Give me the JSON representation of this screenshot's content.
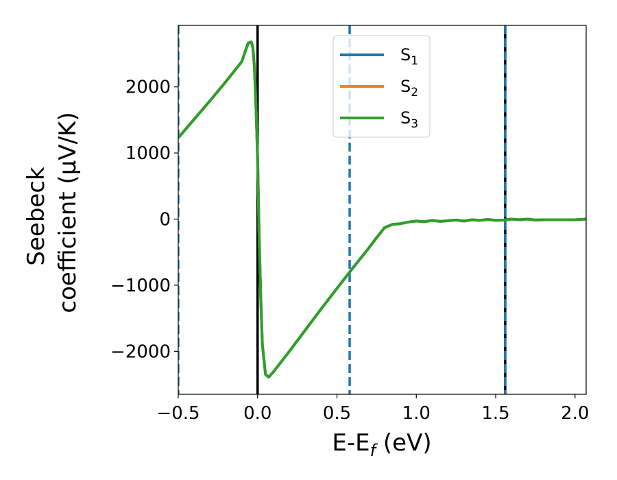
{
  "chart_data": {
    "type": "line",
    "title": "",
    "xlabel": {
      "main": "E-E",
      "sub": "f",
      "unit": " (eV)"
    },
    "ylabel": {
      "line1": "Seebeck",
      "line2": "coefficient  (μV/K)"
    },
    "xlim": [
      -0.5,
      2.07
    ],
    "ylim": [
      -2650,
      2930
    ],
    "xticks": [
      {
        "value": -0.5,
        "label": "−0.5"
      },
      {
        "value": 0.0,
        "label": "0.0"
      },
      {
        "value": 0.5,
        "label": "0.5"
      },
      {
        "value": 1.0,
        "label": "1.0"
      },
      {
        "value": 1.5,
        "label": "1.5"
      },
      {
        "value": 2.0,
        "label": "2.0"
      }
    ],
    "yticks": [
      {
        "value": 2000,
        "label": "2000"
      },
      {
        "value": 1000,
        "label": "1000"
      },
      {
        "value": 0,
        "label": "0"
      },
      {
        "value": -1000,
        "label": "−1000"
      },
      {
        "value": -2000,
        "label": "−2000"
      }
    ],
    "grid": false,
    "legend": {
      "placement": "top-center",
      "entries": [
        {
          "base": "S",
          "sub": "1",
          "color": "#1f77b4"
        },
        {
          "base": "S",
          "sub": "2",
          "color": "#ff7f0e"
        },
        {
          "base": "S",
          "sub": "3",
          "color": "#2ca02c"
        }
      ]
    },
    "vlines": [
      {
        "x": 0.0,
        "color": "#000000",
        "style": "solid"
      },
      {
        "x": 1.56,
        "color": "#000000",
        "style": "solid"
      },
      {
        "x": -0.5,
        "color": "#1f77b4",
        "style": "dashed"
      },
      {
        "x": 0.58,
        "color": "#1f77b4",
        "style": "dashed"
      },
      {
        "x": 1.56,
        "color": "#1f77b4",
        "style": "dashed"
      }
    ],
    "x": [
      -0.5,
      -0.4,
      -0.3,
      -0.2,
      -0.1,
      -0.06,
      -0.04,
      -0.03,
      -0.02,
      -0.01,
      0.0,
      0.01,
      0.02,
      0.03,
      0.05,
      0.07,
      0.1,
      0.2,
      0.3,
      0.4,
      0.5,
      0.6,
      0.7,
      0.75,
      0.8,
      0.85,
      0.9,
      0.95,
      1.0,
      1.05,
      1.1,
      1.15,
      1.2,
      1.25,
      1.3,
      1.35,
      1.4,
      1.45,
      1.5,
      1.55,
      1.6,
      1.65,
      1.7,
      1.75,
      1.8,
      1.9,
      2.0,
      2.07
    ],
    "series": [
      {
        "name": "S1",
        "color": "#1f77b4",
        "values": [
          1230,
          1510,
          1790,
          2080,
          2380,
          2660,
          2680,
          2600,
          2300,
          1700,
          900,
          -300,
          -1200,
          -1900,
          -2350,
          -2390,
          -2310,
          -2000,
          -1680,
          -1360,
          -1050,
          -740,
          -440,
          -280,
          -130,
          -80,
          -70,
          -45,
          -30,
          -40,
          -20,
          -35,
          -25,
          -15,
          -30,
          -10,
          -20,
          -5,
          -20,
          -15,
          0,
          -10,
          0,
          -15,
          -10,
          -10,
          -10,
          0
        ]
      },
      {
        "name": "S2",
        "color": "#ff7f0e",
        "values": [
          1230,
          1510,
          1790,
          2080,
          2380,
          2660,
          2680,
          2600,
          2300,
          1700,
          900,
          -300,
          -1200,
          -1900,
          -2350,
          -2390,
          -2310,
          -2000,
          -1680,
          -1360,
          -1050,
          -740,
          -440,
          -280,
          -130,
          -80,
          -70,
          -45,
          -30,
          -40,
          -20,
          -35,
          -25,
          -15,
          -30,
          -10,
          -20,
          -5,
          -20,
          -15,
          0,
          -10,
          0,
          -15,
          -10,
          -10,
          -10,
          0
        ]
      },
      {
        "name": "S3",
        "color": "#2ca02c",
        "values": [
          1230,
          1510,
          1790,
          2080,
          2380,
          2660,
          2680,
          2600,
          2300,
          1700,
          900,
          -300,
          -1200,
          -1900,
          -2350,
          -2390,
          -2310,
          -2000,
          -1680,
          -1360,
          -1050,
          -740,
          -440,
          -280,
          -130,
          -80,
          -70,
          -45,
          -30,
          -40,
          -20,
          -35,
          -25,
          -15,
          -30,
          -10,
          -20,
          -5,
          -20,
          -15,
          0,
          -10,
          0,
          -15,
          -10,
          -10,
          -10,
          0
        ]
      }
    ]
  }
}
